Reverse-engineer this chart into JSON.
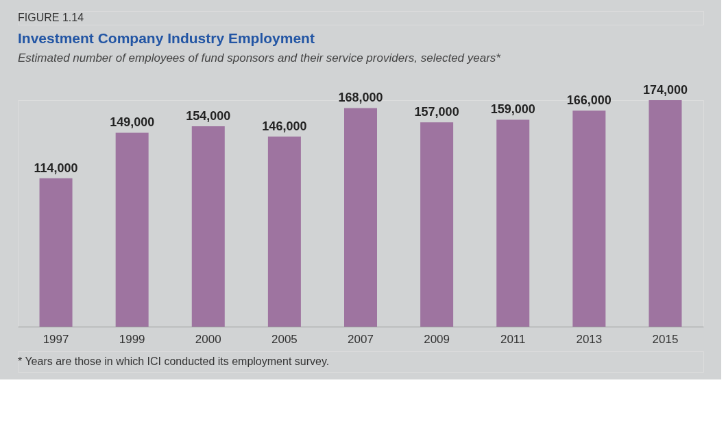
{
  "chart_data": {
    "type": "bar",
    "title": "Investment Company Industry Employment",
    "subtitle": "Estimated number of employees of fund sponsors and their service providers, selected years*",
    "categories": [
      "1997",
      "1999",
      "2000",
      "2005",
      "2007",
      "2009",
      "2011",
      "2013",
      "2015"
    ],
    "values": [
      114000,
      149000,
      154000,
      146000,
      168000,
      157000,
      159000,
      166000,
      174000
    ],
    "color": "#9e74a0",
    "value_labels": [
      "114,000",
      "149,000",
      "154,000",
      "146,000",
      "168,000",
      "157,000",
      "159,000",
      "166,000",
      "174,000"
    ],
    "annotations": [
      "FIGURE 1.14",
      "* Years are those in which ICI conducted its employment survey."
    ]
  }
}
